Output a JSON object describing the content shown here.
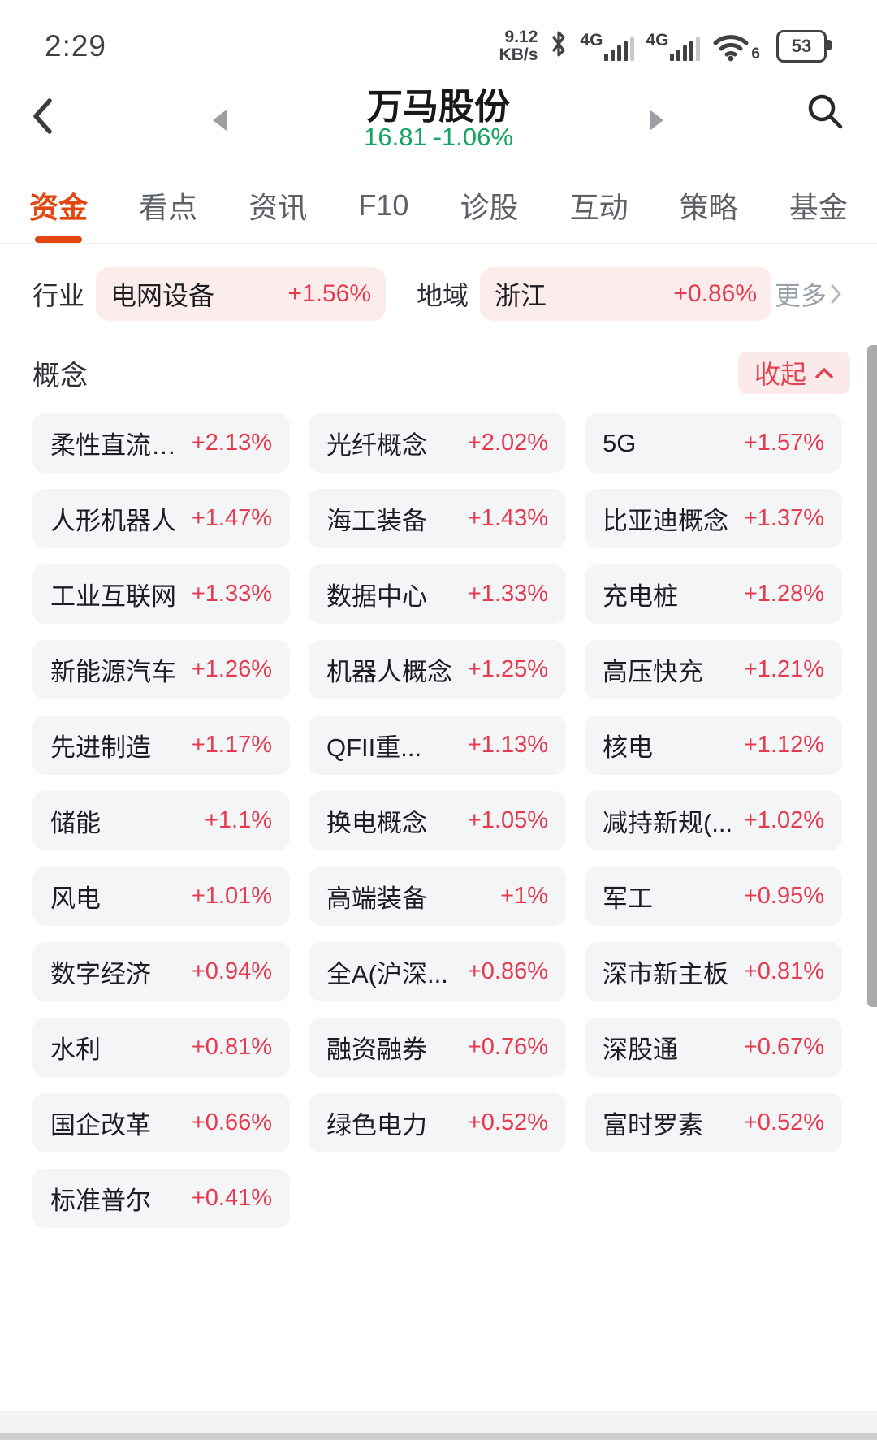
{
  "status_bar": {
    "time": "2:29",
    "net_speed": "9.12",
    "net_unit": "KB/s",
    "net1_label": "4G",
    "net2_label": "4G",
    "wifi_label": "6",
    "battery_level": "53"
  },
  "header": {
    "title": "万马股份",
    "price": "16.81",
    "change": "-1.06%"
  },
  "tabs": [
    {
      "label": "资金",
      "active": true
    },
    {
      "label": "看点",
      "active": false
    },
    {
      "label": "资讯",
      "active": false
    },
    {
      "label": "F10",
      "active": false
    },
    {
      "label": "诊股",
      "active": false
    },
    {
      "label": "互动",
      "active": false
    },
    {
      "label": "策略",
      "active": false
    },
    {
      "label": "基金",
      "active": false
    }
  ],
  "filters": {
    "industry_label": "行业",
    "industry_name": "电网设备",
    "industry_pct": "+1.56%",
    "region_label": "地域",
    "region_name": "浙江",
    "region_pct": "+0.86%",
    "more_label": "更多"
  },
  "concepts": {
    "section_label": "概念",
    "collapse_label": "收起",
    "items": [
      {
        "name": "柔性直流输...",
        "pct": "+2.13%"
      },
      {
        "name": "光纤概念",
        "pct": "+2.02%"
      },
      {
        "name": "5G",
        "pct": "+1.57%"
      },
      {
        "name": "人形机器人",
        "pct": "+1.47%"
      },
      {
        "name": "海工装备",
        "pct": "+1.43%"
      },
      {
        "name": "比亚迪概念",
        "pct": "+1.37%"
      },
      {
        "name": "工业互联网",
        "pct": "+1.33%"
      },
      {
        "name": "数据中心",
        "pct": "+1.33%"
      },
      {
        "name": "充电桩",
        "pct": "+1.28%"
      },
      {
        "name": "新能源汽车",
        "pct": "+1.26%"
      },
      {
        "name": "机器人概念",
        "pct": "+1.25%"
      },
      {
        "name": "高压快充",
        "pct": "+1.21%"
      },
      {
        "name": "先进制造",
        "pct": "+1.17%"
      },
      {
        "name": "QFII重...",
        "pct": "+1.13%"
      },
      {
        "name": "核电",
        "pct": "+1.12%"
      },
      {
        "name": "储能",
        "pct": "+1.1%"
      },
      {
        "name": "换电概念",
        "pct": "+1.05%"
      },
      {
        "name": "减持新规(...",
        "pct": "+1.02%"
      },
      {
        "name": "风电",
        "pct": "+1.01%"
      },
      {
        "name": "高端装备",
        "pct": "+1%"
      },
      {
        "name": "军工",
        "pct": "+0.95%"
      },
      {
        "name": "数字经济",
        "pct": "+0.94%"
      },
      {
        "name": "全A(沪深...",
        "pct": "+0.86%"
      },
      {
        "name": "深市新主板",
        "pct": "+0.81%"
      },
      {
        "name": "水利",
        "pct": "+0.81%"
      },
      {
        "name": "融资融券",
        "pct": "+0.76%"
      },
      {
        "name": "深股通",
        "pct": "+0.67%"
      },
      {
        "name": "国企改革",
        "pct": "+0.66%"
      },
      {
        "name": "绿色电力",
        "pct": "+0.52%"
      },
      {
        "name": "富时罗素",
        "pct": "+0.52%"
      },
      {
        "name": "标准普尔",
        "pct": "+0.41%"
      }
    ]
  },
  "colors": {
    "accent_red": "#e1470f",
    "pct_red": "#e63a4f",
    "price_green": "#16a463",
    "pill_pink": "#fdecec",
    "tag_bg": "#f4f5f7"
  }
}
